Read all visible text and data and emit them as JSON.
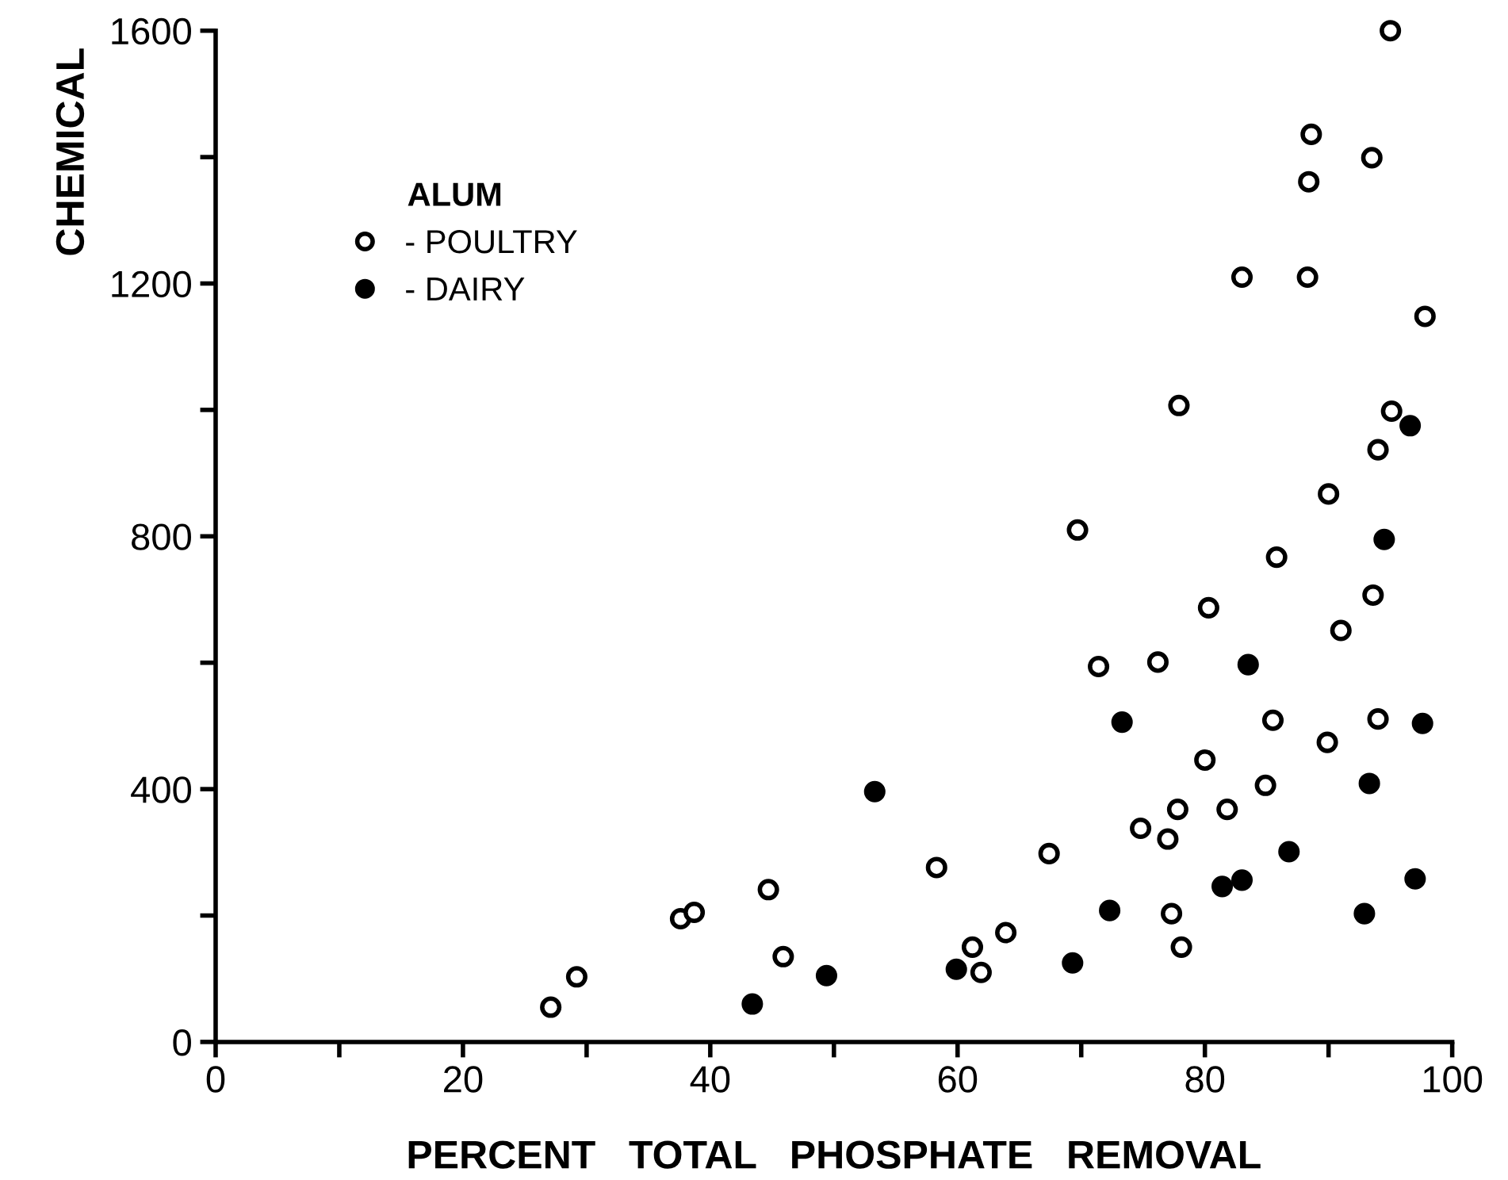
{
  "chart_data": {
    "type": "scatter",
    "xlabel": "PERCENT   TOTAL   PHOSPHATE   REMOVAL",
    "ylabel": "CHEMICAL",
    "legend_title": "ALUM",
    "series": [
      {
        "name": "- POULTRY",
        "color": "#ffffff",
        "marker": "circle",
        "x": [
          27.1,
          29.2,
          37.6,
          38.7,
          44.7,
          45.9,
          58.3,
          61.2,
          61.9,
          63.9,
          67.4,
          69.7,
          71.4,
          76.2,
          74.8,
          77.0,
          77.3,
          78.1,
          77.8,
          77.9,
          80.0,
          80.3,
          81.8,
          83.0,
          84.9,
          85.5,
          85.8,
          88.3,
          88.4,
          88.6,
          89.9,
          90.0,
          91.0,
          93.5,
          93.6,
          94.0,
          94.0,
          95.0,
          95.1,
          97.8
        ],
        "values": [
          55,
          103,
          195,
          205,
          241,
          135,
          276,
          150,
          110,
          173,
          298,
          810,
          594,
          601,
          338,
          321,
          203,
          150,
          368,
          1007,
          446,
          687,
          368,
          1210,
          406,
          509,
          767,
          1210,
          1361,
          1436,
          474,
          867,
          651,
          1399,
          707,
          511,
          937,
          1600,
          998,
          1148
        ]
      },
      {
        "name": "- DAIRY",
        "color": "#000000",
        "marker": "circle",
        "x": [
          43.4,
          49.4,
          53.3,
          59.9,
          69.3,
          72.3,
          73.3,
          81.4,
          83.0,
          83.5,
          86.8,
          92.9,
          93.3,
          94.5,
          96.6,
          97.0,
          97.6
        ],
        "values": [
          60,
          105,
          396,
          115,
          125,
          208,
          506,
          246,
          256,
          597,
          301,
          203,
          409,
          795,
          975,
          258,
          504
        ]
      }
    ],
    "xlim": [
      0,
      100
    ],
    "ylim": [
      0,
      1600
    ],
    "xticks": [
      0,
      {
        "value": 10,
        "label": null
      },
      20,
      {
        "value": 30,
        "label": null
      },
      40,
      {
        "value": 50,
        "label": null
      },
      60,
      {
        "value": 70,
        "label": null
      },
      80,
      {
        "value": 90,
        "label": null
      },
      100
    ],
    "yticks": [
      0,
      {
        "value": 200,
        "label": null
      },
      400,
      {
        "value": 600,
        "label": null
      },
      800,
      {
        "value": 1000,
        "label": null
      },
      1200,
      {
        "value": 1400,
        "label": null
      },
      1600
    ],
    "grid": false,
    "legend": "top left"
  }
}
